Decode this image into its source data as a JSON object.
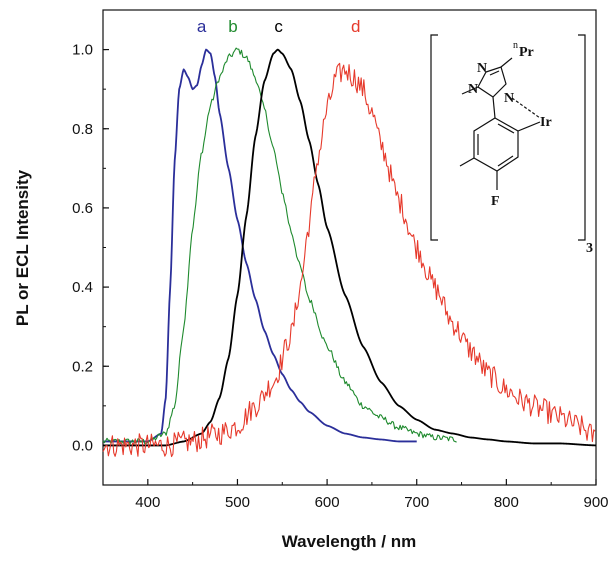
{
  "chart_data": {
    "type": "line",
    "xlabel": "Wavelength / nm",
    "ylabel": "PL or ECL Intensity",
    "xlim": [
      350,
      900
    ],
    "ylim": [
      -0.1,
      1.1
    ],
    "xticks": [
      "400",
      "500",
      "600",
      "700",
      "800",
      "900"
    ],
    "yticks": [
      "0.0",
      "0.2",
      "0.4",
      "0.6",
      "0.8",
      "1.0"
    ],
    "grid": false,
    "series": [
      {
        "name": "a",
        "color": "#2b2f9a",
        "noise": 0,
        "x": [
          350,
          380,
          400,
          415,
          420,
          425,
          430,
          435,
          440,
          445,
          450,
          455,
          460,
          465,
          470,
          475,
          480,
          490,
          500,
          510,
          520,
          530,
          540,
          550,
          560,
          570,
          580,
          600,
          620,
          640,
          660,
          680,
          700
        ],
        "y": [
          0.01,
          0.01,
          0.01,
          0.03,
          0.12,
          0.4,
          0.72,
          0.9,
          0.95,
          0.93,
          0.9,
          0.91,
          0.96,
          1.0,
          0.99,
          0.93,
          0.84,
          0.7,
          0.57,
          0.46,
          0.37,
          0.29,
          0.23,
          0.18,
          0.14,
          0.11,
          0.085,
          0.05,
          0.03,
          0.02,
          0.015,
          0.01,
          0.01
        ]
      },
      {
        "name": "b",
        "color": "#1f8a2e",
        "noise": 0.008,
        "x": [
          350,
          400,
          420,
          430,
          440,
          450,
          460,
          470,
          480,
          490,
          500,
          510,
          520,
          530,
          540,
          550,
          560,
          570,
          580,
          600,
          620,
          640,
          660,
          680,
          700,
          720,
          745
        ],
        "y": [
          0.01,
          0.01,
          0.03,
          0.1,
          0.3,
          0.55,
          0.74,
          0.86,
          0.93,
          0.98,
          1.0,
          0.98,
          0.93,
          0.85,
          0.75,
          0.64,
          0.54,
          0.45,
          0.37,
          0.25,
          0.16,
          0.1,
          0.07,
          0.045,
          0.03,
          0.02,
          0.015
        ]
      },
      {
        "name": "c",
        "color": "#000000",
        "noise": 0,
        "x": [
          350,
          420,
          440,
          460,
          470,
          480,
          490,
          500,
          510,
          520,
          530,
          540,
          545,
          550,
          560,
          570,
          580,
          590,
          600,
          620,
          640,
          660,
          680,
          700,
          720,
          740,
          760,
          780,
          800,
          830,
          860,
          900
        ],
        "y": [
          0.0,
          0.0,
          0.01,
          0.03,
          0.06,
          0.12,
          0.22,
          0.38,
          0.58,
          0.78,
          0.92,
          0.99,
          1.0,
          0.99,
          0.95,
          0.87,
          0.77,
          0.66,
          0.55,
          0.38,
          0.25,
          0.16,
          0.1,
          0.065,
          0.04,
          0.03,
          0.02,
          0.015,
          0.01,
          0.005,
          0.005,
          0.0
        ]
      },
      {
        "name": "d",
        "color": "#e6392b",
        "noise": 0.03,
        "x": [
          350,
          420,
          450,
          480,
          500,
          520,
          540,
          560,
          570,
          580,
          590,
          600,
          610,
          620,
          630,
          640,
          650,
          660,
          680,
          700,
          720,
          740,
          760,
          780,
          800,
          820,
          840,
          860,
          880,
          900
        ],
        "y": [
          0.0,
          0.0,
          0.01,
          0.03,
          0.05,
          0.1,
          0.16,
          0.28,
          0.4,
          0.56,
          0.73,
          0.85,
          0.93,
          0.95,
          0.93,
          0.9,
          0.84,
          0.76,
          0.62,
          0.5,
          0.4,
          0.31,
          0.24,
          0.18,
          0.14,
          0.11,
          0.09,
          0.07,
          0.05,
          0.02
        ]
      }
    ],
    "series_labels": [
      {
        "text": "a",
        "x": 460,
        "color": "#2b2f9a"
      },
      {
        "text": "b",
        "x": 495,
        "color": "#1f8a2e"
      },
      {
        "text": "c",
        "x": 546,
        "color": "#000000"
      },
      {
        "text": "d",
        "x": 632,
        "color": "#e6392b"
      }
    ]
  },
  "structure": {
    "label_N1": "N",
    "label_N2": "N",
    "label_N3": "N",
    "label_Ir": "Ir",
    "label_F": "F",
    "label_nPr_sup": "n",
    "label_nPr": "Pr",
    "label_sub3": "3"
  }
}
